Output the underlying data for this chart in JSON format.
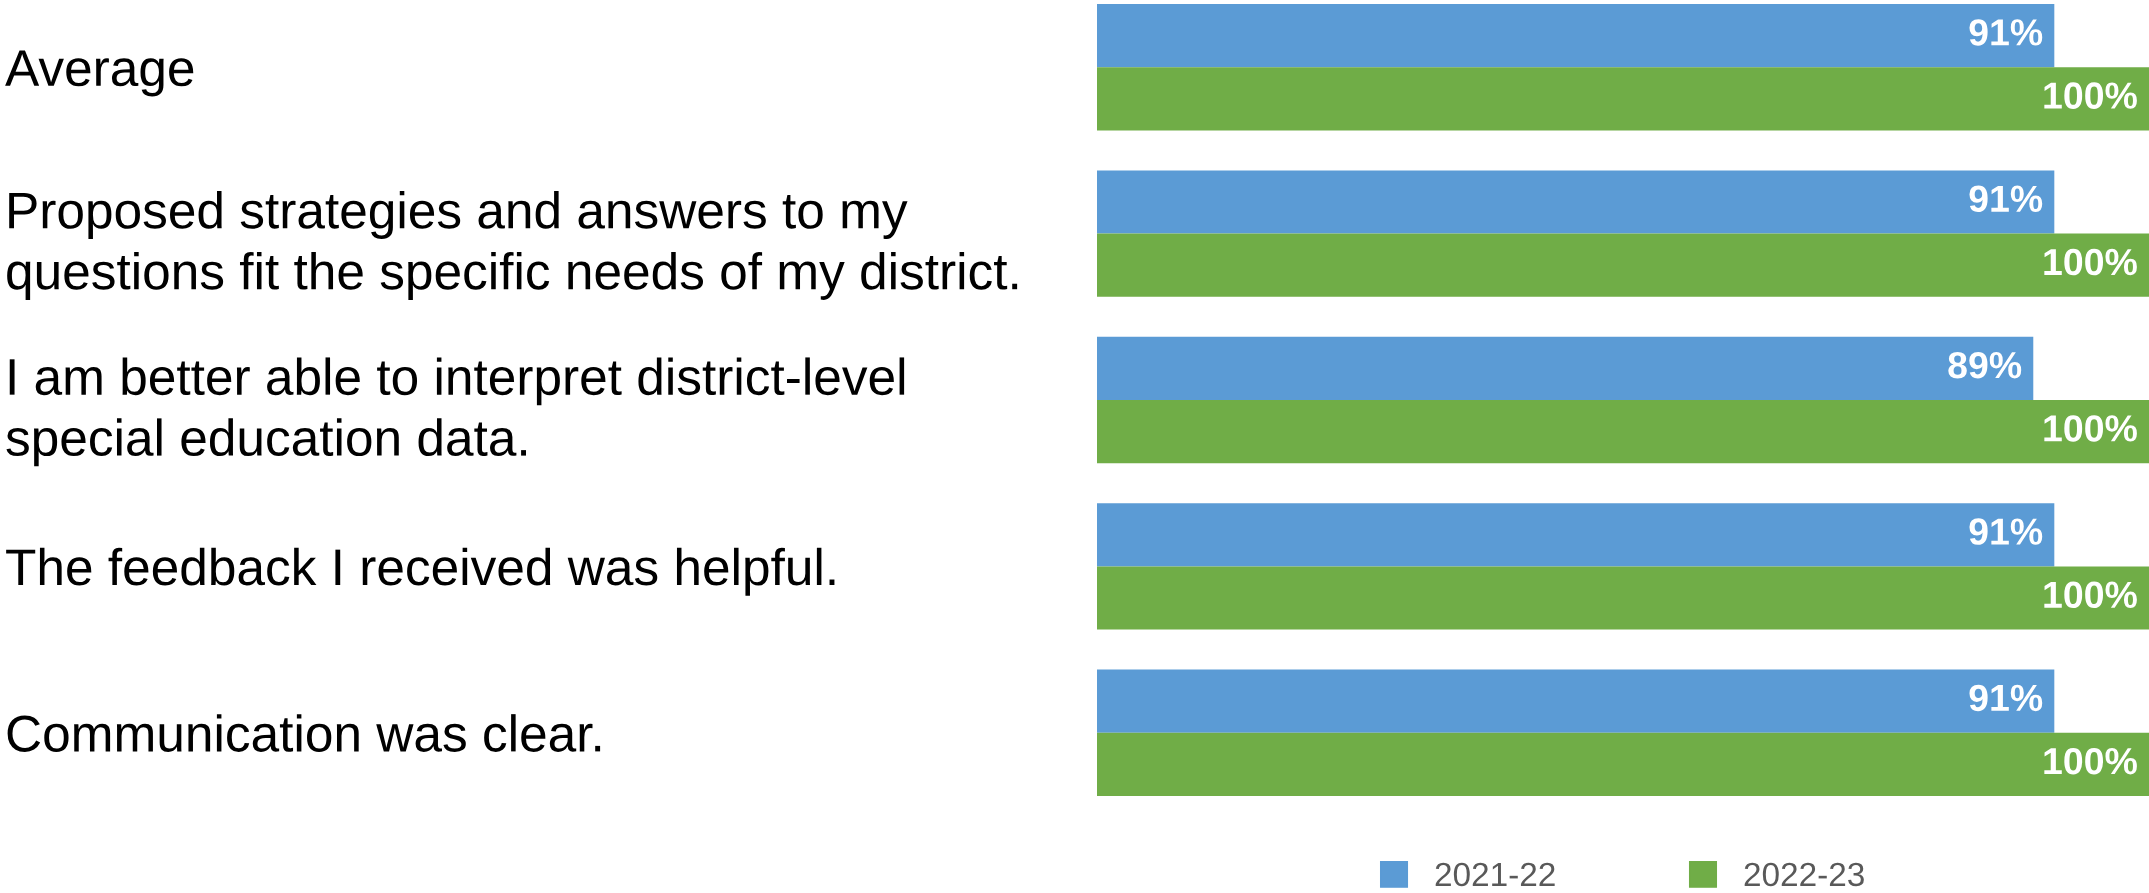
{
  "chart_data": {
    "type": "bar",
    "orientation": "horizontal",
    "xlim": [
      0,
      100
    ],
    "categories": [
      "Average",
      "Proposed strategies and answers to my\nquestions fit the specific needs of my district.",
      "I am better able to interpret district-level\nspecial education data.",
      "The feedback I received was helpful.",
      "Communication was clear."
    ],
    "series": [
      {
        "name": "2021-22",
        "color": "#5b9bd5",
        "values": [
          91,
          91,
          89,
          91,
          91
        ],
        "value_labels": [
          "91%",
          "91%",
          "89%",
          "91%",
          "91%"
        ]
      },
      {
        "name": "2022-23",
        "color": "#70ad47",
        "values": [
          100,
          100,
          100,
          100,
          100
        ],
        "value_labels": [
          "100%",
          "100%",
          "100%",
          "100%",
          "100%"
        ]
      }
    ],
    "legend": "bottom",
    "grid": false
  }
}
